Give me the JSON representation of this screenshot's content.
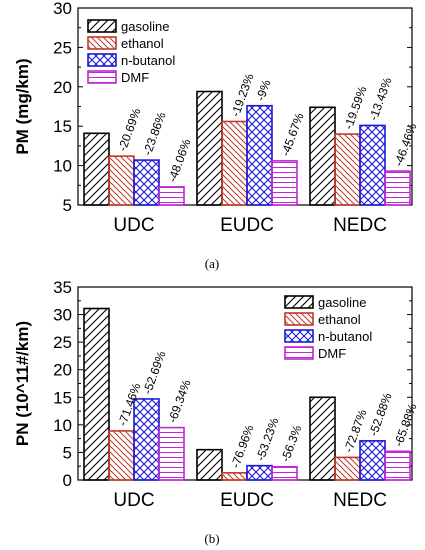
{
  "figure": {
    "panels": [
      "(a)",
      "(b)"
    ]
  },
  "colors": {
    "gasoline": "#000000",
    "ethanol": "#c0392b",
    "n-butanol": "#1a1ad6",
    "DMF": "#c026d3"
  },
  "chart_data": [
    {
      "type": "bar",
      "panel": "(a)",
      "ylabel": "PM (mg/km)",
      "xlabel": "",
      "ylim": [
        5,
        30
      ],
      "yticks": [
        5,
        10,
        15,
        20,
        25,
        30
      ],
      "categories": [
        "UDC",
        "EUDC",
        "NEDC"
      ],
      "series": [
        {
          "name": "gasoline",
          "values": [
            14.1,
            19.4,
            17.4
          ],
          "labels": [
            "",
            "",
            ""
          ]
        },
        {
          "name": "ethanol",
          "values": [
            11.2,
            15.6,
            14.0
          ],
          "labels": [
            "-20.69%",
            "-19.23%",
            "-19.59%"
          ]
        },
        {
          "name": "n-butanol",
          "values": [
            10.7,
            17.6,
            15.1
          ],
          "labels": [
            "-23.86%",
            "-9%",
            "-13.43%"
          ]
        },
        {
          "name": "DMF",
          "values": [
            7.3,
            10.6,
            9.3
          ],
          "labels": [
            "-48.06%",
            "-45.67%",
            "-46.46%"
          ]
        }
      ],
      "legend_position": "top-left",
      "grid": false
    },
    {
      "type": "bar",
      "panel": "(b)",
      "ylabel": "PN (10^11#/km)",
      "xlabel": "",
      "ylim": [
        0,
        35
      ],
      "yticks": [
        0,
        5,
        10,
        15,
        20,
        25,
        30,
        35
      ],
      "categories": [
        "UDC",
        "EUDC",
        "NEDC"
      ],
      "series": [
        {
          "name": "gasoline",
          "values": [
            31.1,
            5.5,
            15.0
          ],
          "labels": [
            "",
            "",
            ""
          ]
        },
        {
          "name": "ethanol",
          "values": [
            8.9,
            1.3,
            4.1
          ],
          "labels": [
            "-71.46%",
            "-76.96%",
            "-72.87%"
          ]
        },
        {
          "name": "n-butanol",
          "values": [
            14.7,
            2.6,
            7.1
          ],
          "labels": [
            "-52.69%",
            "-53.23%",
            "-52.88%"
          ]
        },
        {
          "name": "DMF",
          "values": [
            9.5,
            2.4,
            5.2
          ],
          "labels": [
            "-69.34%",
            "-56.3%",
            "-65.88%"
          ]
        }
      ],
      "legend_position": "top-right",
      "grid": false
    }
  ]
}
